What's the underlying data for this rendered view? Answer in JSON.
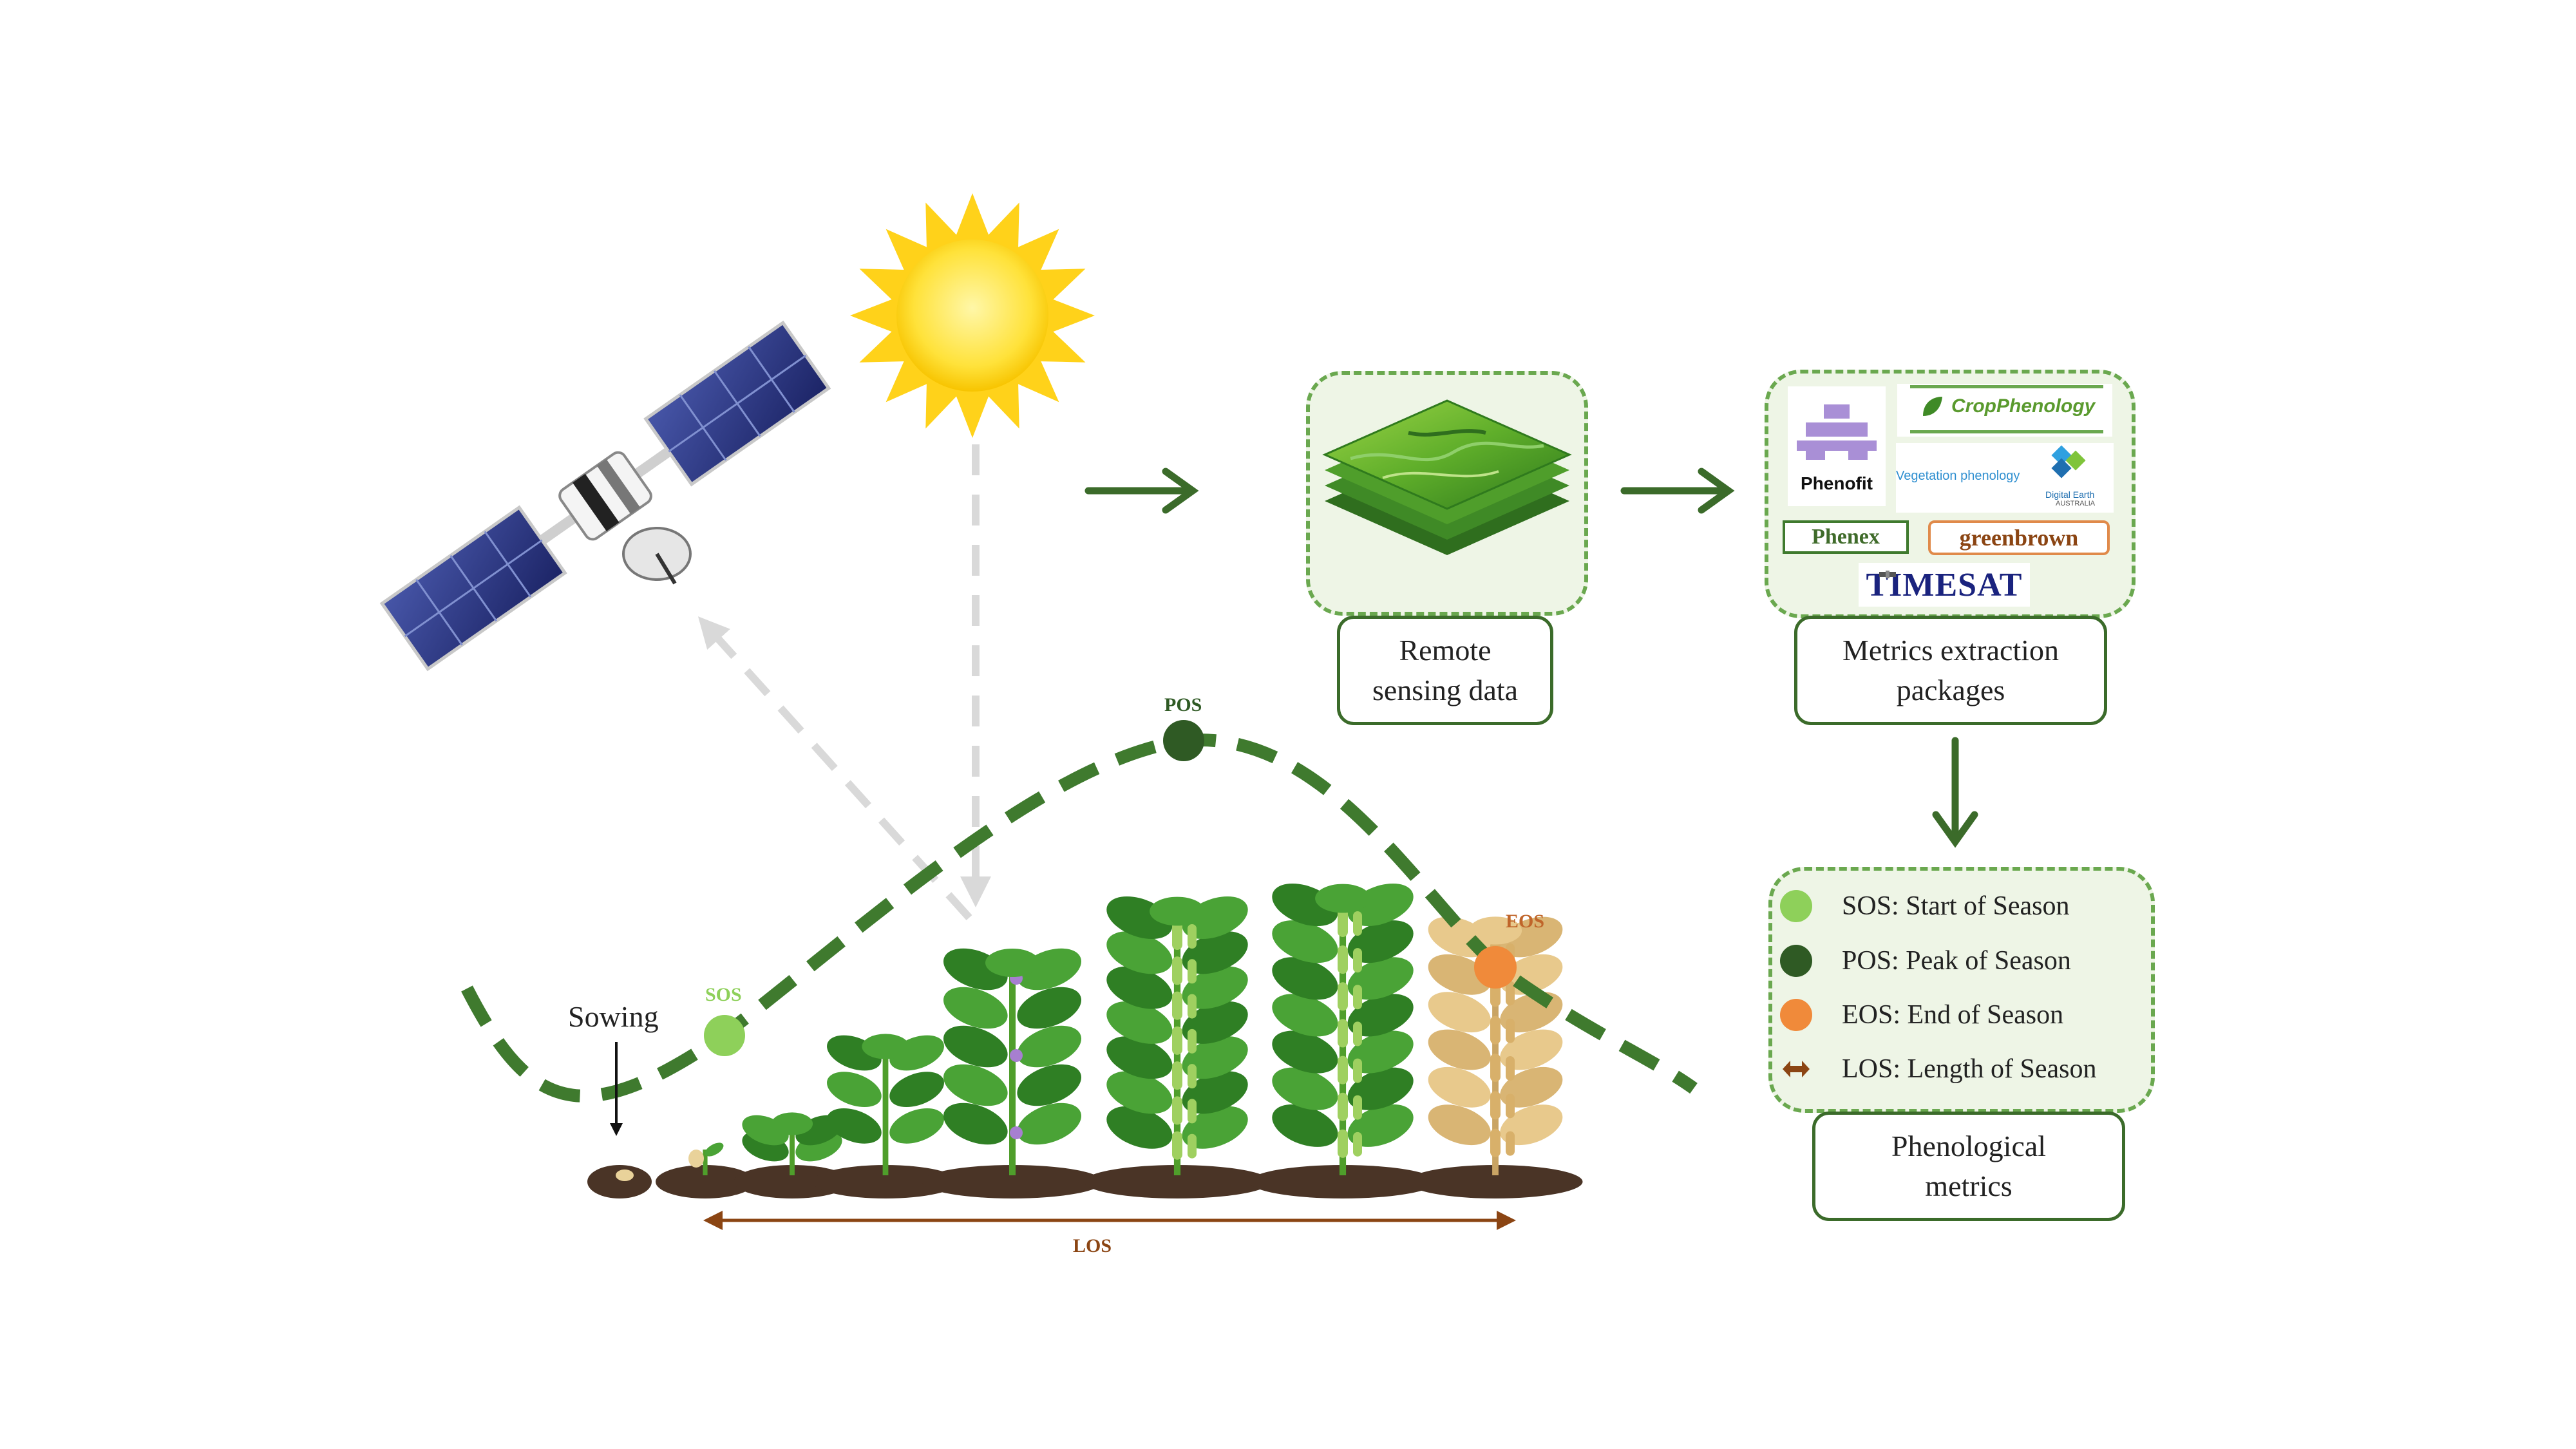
{
  "curve": {
    "sowing_label": "Sowing",
    "sos_label": "SOS",
    "pos_label": "POS",
    "eos_label": "EOS",
    "los_label": "LOS"
  },
  "boxes": {
    "remote_sensing": "Remote\nsensing data",
    "metrics_extraction": "Metrics extraction\npackages",
    "phenological_metrics": "Phenological\nmetrics"
  },
  "packages": {
    "phenofit": "Phenofit",
    "cropphenology": "CropPhenology",
    "vegetation_phenology": "Vegetation phenology",
    "digital_earth": "Digital Earth",
    "australia": "AUSTRALIA",
    "phenex": "Phenex",
    "greenbrown": "greenbrown",
    "timesat": "TIMESAT"
  },
  "legend": [
    {
      "label": "SOS: Start of Season",
      "color": "#8ed05a"
    },
    {
      "label": "POS: Peak of Season",
      "color": "#2f5a24"
    },
    {
      "label": "EOS: End of Season",
      "color": "#f08a3a"
    },
    {
      "label": "LOS: Length of Season",
      "color": "#8b4513"
    }
  ],
  "colors": {
    "curve": "#3f7a2e",
    "sos": "#8ed05a",
    "pos": "#2f5a24",
    "eos": "#f08a3a",
    "los": "#8b4513",
    "arrow": "#3b6b2a"
  },
  "icons": [
    "satellite-icon",
    "sun-icon",
    "raster-stack-icon",
    "plant-icon"
  ]
}
